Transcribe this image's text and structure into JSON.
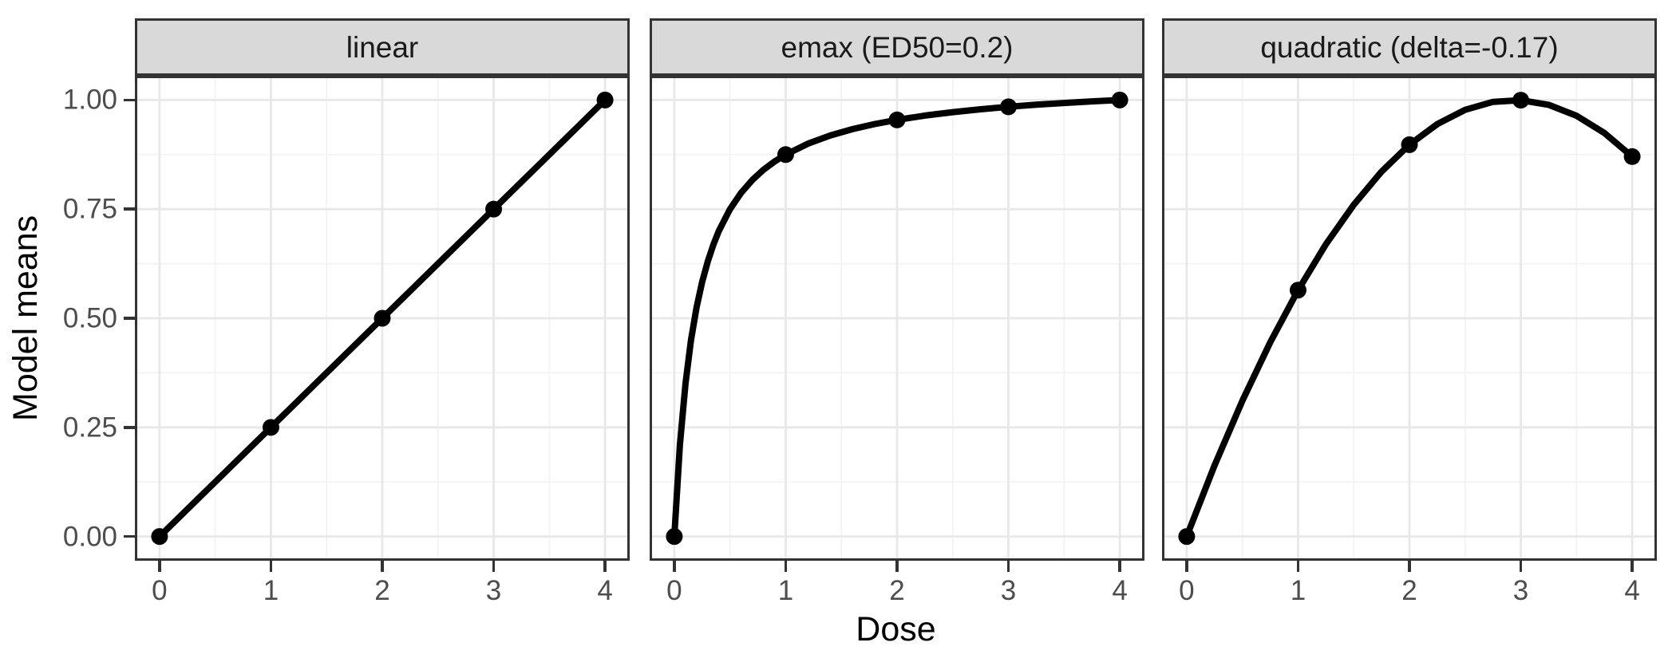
{
  "chart_data": {
    "type": "line",
    "title": "",
    "xlabel": "Dose",
    "ylabel": "Model means",
    "legend": "none",
    "grid": "major+minor",
    "facet_layout": "three-column strips on top",
    "xlim": [
      -0.2,
      4.2
    ],
    "ylim": [
      -0.05,
      1.05
    ],
    "xticks": [
      0,
      1,
      2,
      3,
      4
    ],
    "xtick_labels": [
      "0",
      "1",
      "2",
      "3",
      "4"
    ],
    "yticks": [
      0,
      0.25,
      0.5,
      0.75,
      1
    ],
    "ytick_labels": [
      "0.00",
      "0.25",
      "0.50",
      "0.75",
      "1.00"
    ],
    "facets": [
      {
        "label": "linear",
        "x": [
          0,
          1,
          2,
          3,
          4
        ],
        "y": [
          0,
          0.25,
          0.5,
          0.75,
          1
        ],
        "curve": [
          [
            0,
            0
          ],
          [
            4,
            1
          ]
        ]
      },
      {
        "label": "emax (ED50=0.2)",
        "x": [
          0,
          1,
          2,
          3,
          4
        ],
        "y": [
          0,
          0.875,
          0.9545,
          0.9844,
          1
        ],
        "curve": [
          [
            0,
            0
          ],
          [
            0.05,
            0.21
          ],
          [
            0.1,
            0.35
          ],
          [
            0.15,
            0.45
          ],
          [
            0.2,
            0.525
          ],
          [
            0.25,
            0.5833
          ],
          [
            0.3,
            0.63
          ],
          [
            0.35,
            0.6682
          ],
          [
            0.4,
            0.7
          ],
          [
            0.5,
            0.75
          ],
          [
            0.6,
            0.7875
          ],
          [
            0.7,
            0.8167
          ],
          [
            0.8,
            0.84
          ],
          [
            0.9,
            0.8591
          ],
          [
            1,
            0.875
          ],
          [
            1.2,
            0.9
          ],
          [
            1.4,
            0.9187
          ],
          [
            1.6,
            0.9333
          ],
          [
            1.8,
            0.945
          ],
          [
            2,
            0.9545
          ],
          [
            2.25,
            0.9643
          ],
          [
            2.5,
            0.9722
          ],
          [
            2.75,
            0.9788
          ],
          [
            3,
            0.9844
          ],
          [
            3.25,
            0.9891
          ],
          [
            3.5,
            0.9932
          ],
          [
            3.75,
            0.9968
          ],
          [
            4,
            1
          ]
        ]
      },
      {
        "label": "quadratic (delta=-0.17)",
        "x": [
          0,
          1,
          2,
          3,
          4
        ],
        "y": [
          0,
          0.5644,
          0.8976,
          0.9996,
          0.8704
        ],
        "curve": [
          [
            0,
            0
          ],
          [
            0.25,
            0.1628
          ],
          [
            0.5,
            0.3111
          ],
          [
            0.75,
            0.445
          ],
          [
            1,
            0.5644
          ],
          [
            1.25,
            0.6694
          ],
          [
            1.5,
            0.7599
          ],
          [
            1.75,
            0.836
          ],
          [
            2,
            0.8976
          ],
          [
            2.25,
            0.9448
          ],
          [
            2.5,
            0.9775
          ],
          [
            2.75,
            0.9958
          ],
          [
            3,
            0.9996
          ],
          [
            3.25,
            0.989
          ],
          [
            3.5,
            0.9639
          ],
          [
            3.75,
            0.9244
          ],
          [
            4,
            0.8704
          ]
        ]
      }
    ],
    "colors": {
      "line": "#000000",
      "point": "#000000",
      "figure_bg": "#ffffff",
      "panel_bg": "#ffffff",
      "panel_border": "#333333",
      "strip_fill": "#d9d9d9",
      "strip_border": "#333333",
      "strip_text": "#1a1a1a",
      "grid_major": "#e8e8e8",
      "grid_minor": "#f3f3f3",
      "tick_mark": "#333333",
      "tick_text": "#4d4d4d",
      "axis_title_text": "#000000"
    }
  }
}
